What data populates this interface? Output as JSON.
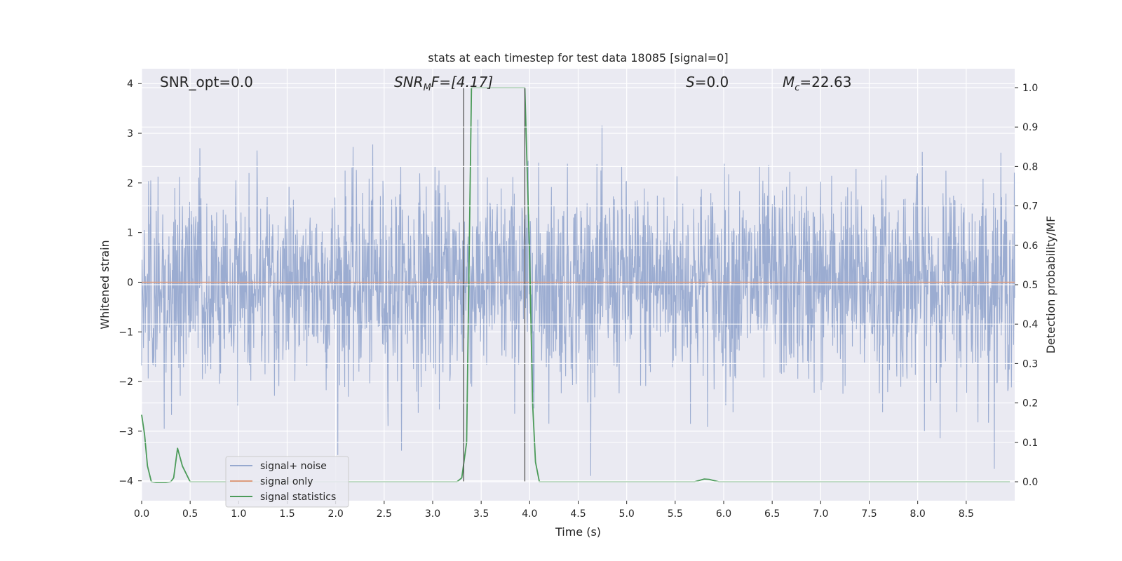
{
  "chart_data": {
    "type": "line",
    "title": "stats at each timestep for test data 18085 [signal=0]",
    "xlabel": "Time (s)",
    "ylabel": "Whitened strain",
    "y2label": "Detection probability/MF",
    "xlim": [
      0.0,
      9.0
    ],
    "ylim": [
      -4.4,
      4.3
    ],
    "y2lim": [
      -0.048,
      1.048
    ],
    "xticks": [
      "0.0",
      "0.5",
      "1.0",
      "1.5",
      "2.0",
      "2.5",
      "3.0",
      "3.5",
      "4.0",
      "4.5",
      "5.0",
      "5.5",
      "6.0",
      "6.5",
      "7.0",
      "7.5",
      "8.0",
      "8.5"
    ],
    "yticks": [
      "−4",
      "−3",
      "−2",
      "−1",
      "0",
      "1",
      "2",
      "3",
      "4"
    ],
    "y2ticks": [
      "0.0",
      "0.1",
      "0.2",
      "0.3",
      "0.4",
      "0.5",
      "0.6",
      "0.7",
      "0.8",
      "0.9",
      "1.0"
    ],
    "grid": true,
    "legend_position": "lower-left",
    "annotations": {
      "snr_opt": "SNR_opt=0.0",
      "snr_mf_prefix": "SNR",
      "snr_mf_sub": "M",
      "snr_mf_suffix": "F=[4.17]",
      "s_var": "S",
      "s_value": "=0.0",
      "mc_var": "M",
      "mc_sub": "c",
      "mc_value": "=22.63"
    },
    "vertical_lines_x": [
      3.32,
      3.95
    ],
    "series": [
      {
        "name": "signal+ noise",
        "color": "#97a9cf",
        "axis": "left",
        "envelope_sigma": 1.0,
        "note_values": "noise trace, range approx -3.9 to 3.9"
      },
      {
        "name": "signal only",
        "color": "#dd9c7e",
        "axis": "left",
        "x": [
          0.0,
          9.0
        ],
        "y": [
          0.0,
          0.0
        ]
      },
      {
        "name": "signal statistics",
        "color": "#4c9b5a",
        "axis": "right",
        "x": [
          0.0,
          0.03,
          0.06,
          0.1,
          0.15,
          0.2,
          0.25,
          0.3,
          0.33,
          0.37,
          0.42,
          0.5,
          1.0,
          2.0,
          3.0,
          3.25,
          3.3,
          3.35,
          3.4,
          3.5,
          3.9,
          3.95,
          4.0,
          4.03,
          4.06,
          4.1,
          5.0,
          5.7,
          5.8,
          5.85,
          5.95,
          6.5,
          7.5,
          8.5,
          8.95
        ],
        "y": [
          0.17,
          0.12,
          0.04,
          0.0,
          -0.002,
          -0.002,
          -0.002,
          0.0,
          0.01,
          0.085,
          0.04,
          0.0,
          0.0,
          0.0,
          0.0,
          0.0,
          0.01,
          0.1,
          1.0,
          1.0,
          1.0,
          1.0,
          0.57,
          0.2,
          0.05,
          0.0,
          0.0,
          0.0,
          0.007,
          0.006,
          0.0,
          0.0,
          0.0,
          0.0,
          0.0
        ]
      }
    ]
  }
}
